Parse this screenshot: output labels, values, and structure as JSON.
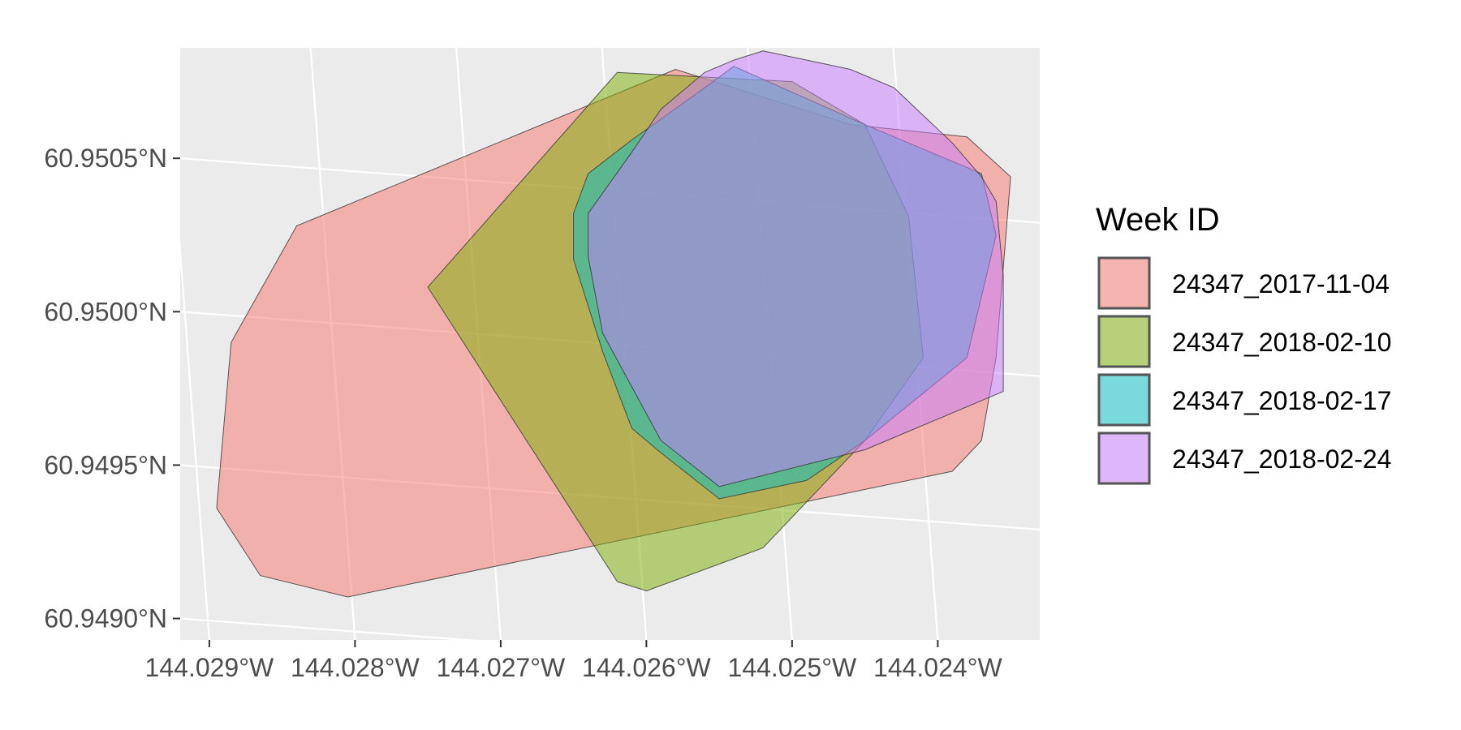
{
  "chart_data": {
    "type": "area",
    "title": "",
    "xlabel": "",
    "ylabel": "",
    "grid": true,
    "legend_position": "right",
    "xlim": [
      -144.0292,
      -144.0233
    ],
    "ylim": [
      60.94893,
      60.95086
    ],
    "x_ticks": [
      "144.029°W",
      "144.028°W",
      "144.027°W",
      "144.026°W",
      "144.025°W",
      "144.024°W"
    ],
    "x_tick_values": [
      -144.029,
      -144.028,
      -144.027,
      -144.026,
      -144.025,
      -144.024
    ],
    "y_ticks": [
      "60.9490°N",
      "60.9495°N",
      "60.9500°N",
      "60.9505°N"
    ],
    "y_tick_values": [
      60.949,
      60.9495,
      60.95,
      60.9505
    ],
    "legend": {
      "title": "Week ID"
    },
    "series": [
      {
        "name": "24347_2017-11-04",
        "color": "#F8766D",
        "polygon": [
          [
            -144.0258,
            60.95079
          ],
          [
            -144.0284,
            60.95028
          ],
          [
            -144.02885,
            60.9499
          ],
          [
            -144.02895,
            60.94936
          ],
          [
            -144.02865,
            60.94914
          ],
          [
            -144.02805,
            60.94907
          ],
          [
            -144.0239,
            60.94948
          ],
          [
            -144.0237,
            60.94958
          ],
          [
            -144.0236,
            60.94985
          ],
          [
            -144.0235,
            60.95044
          ],
          [
            -144.0238,
            60.95057
          ],
          [
            -144.0246,
            60.95061
          ]
        ]
      },
      {
        "name": "24347_2018-02-10",
        "color": "#7CAE00",
        "polygon": [
          [
            -144.0262,
            60.95078
          ],
          [
            -144.0275,
            60.95008
          ],
          [
            -144.0262,
            60.94912
          ],
          [
            -144.026,
            60.94909
          ],
          [
            -144.0252,
            60.94923
          ],
          [
            -144.0245,
            60.94958
          ],
          [
            -144.0241,
            60.94985
          ],
          [
            -144.0242,
            60.95031
          ],
          [
            -144.0245,
            60.95061
          ],
          [
            -144.025,
            60.95075
          ]
        ]
      },
      {
        "name": "24347_2018-02-17",
        "color": "#00BFC4",
        "polygon": [
          [
            -144.0254,
            60.9508
          ],
          [
            -144.0256,
            60.95073
          ],
          [
            -144.0261,
            60.95056
          ],
          [
            -144.0264,
            60.95045
          ],
          [
            -144.0265,
            60.95032
          ],
          [
            -144.0265,
            60.95017
          ],
          [
            -144.0263,
            60.94987
          ],
          [
            -144.0261,
            60.94962
          ],
          [
            -144.0259,
            60.94954
          ],
          [
            -144.0255,
            60.94939
          ],
          [
            -144.0249,
            60.94945
          ],
          [
            -144.0245,
            60.94958
          ],
          [
            -144.0238,
            60.94985
          ],
          [
            -144.0236,
            60.95025
          ],
          [
            -144.0237,
            60.95045
          ],
          [
            -144.0245,
            60.95061
          ]
        ]
      },
      {
        "name": "24347_2018-02-24",
        "color": "#C77CFF",
        "polygon": [
          [
            -144.0252,
            60.95085
          ],
          [
            -144.0248,
            60.95081
          ],
          [
            -144.0246,
            60.95079
          ],
          [
            -144.0243,
            60.95073
          ],
          [
            -144.0239,
            60.95055
          ],
          [
            -144.0237,
            60.95044
          ],
          [
            -144.0236,
            60.95036
          ],
          [
            -144.02355,
            60.95012
          ],
          [
            -144.02355,
            60.94974
          ],
          [
            -144.0245,
            60.94955
          ],
          [
            -144.0255,
            60.94943
          ],
          [
            -144.0259,
            60.94958
          ],
          [
            -144.0263,
            60.94993
          ],
          [
            -144.0264,
            60.95018
          ],
          [
            -144.0264,
            60.95032
          ],
          [
            -144.0261,
            60.95052
          ],
          [
            -144.0259,
            60.95066
          ],
          [
            -144.0256,
            60.95078
          ],
          [
            -144.0254,
            60.95082
          ]
        ]
      }
    ]
  }
}
